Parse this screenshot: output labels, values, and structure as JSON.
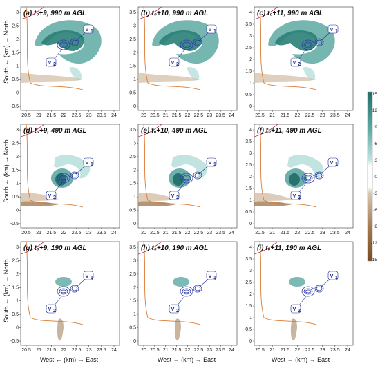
{
  "figure": {
    "y_axis_label": "South ← (km) → North",
    "x_axis_label": "West ← (km) → East",
    "colorbar": {
      "ticks": [
        "15",
        "12",
        "9",
        "6",
        "3",
        "0",
        "-3",
        "-6",
        "-9",
        "-12",
        "-15"
      ],
      "positive_color": "#1f7a72",
      "negative_color": "#8a5a2b"
    },
    "vortex_labels": {
      "v1": "V",
      "v2": "V",
      "sub1": "1",
      "sub2": "2"
    },
    "rows": [
      {
        "height": "990 m AGL",
        "panels": [
          {
            "letter": "(a)",
            "time": "t₀+9,",
            "height": "990 m AGL",
            "xticks": [
              "20.5",
              "21",
              "21.5",
              "22",
              "22.5",
              "23",
              "23.5",
              "24"
            ],
            "yticks": [
              "-0.5",
              "0",
              "0.5",
              "1",
              "1.5",
              "2",
              "2.5",
              "3"
            ]
          },
          {
            "letter": "(b)",
            "time": "t₀+10,",
            "height": "990 m AGL",
            "xticks": [
              "20",
              "20.5",
              "21",
              "21.5",
              "22",
              "22.5",
              "23",
              "23.5",
              "24"
            ],
            "yticks": [
              "0",
              "0.5",
              "1",
              "1.5",
              "2",
              "2.5",
              "3",
              "3.5"
            ]
          },
          {
            "letter": "(c)",
            "time": "t₀+11,",
            "height": "990 m AGL",
            "xticks": [
              "20.5",
              "21",
              "21.5",
              "22",
              "22.5",
              "23",
              "23.5",
              "24"
            ],
            "yticks": [
              "0",
              "0.5",
              "1",
              "1.5",
              "2",
              "2.5",
              "3",
              "3.5",
              "4"
            ]
          }
        ]
      },
      {
        "height": "490 m AGL",
        "panels": [
          {
            "letter": "(d)",
            "time": "t₀+9,",
            "height": "490 m AGL",
            "xticks": [
              "20.5",
              "21",
              "21.5",
              "22",
              "22.5",
              "23",
              "23.5",
              "24"
            ],
            "yticks": [
              "-0.5",
              "0",
              "0.5",
              "1",
              "1.5",
              "2",
              "2.5",
              "3"
            ]
          },
          {
            "letter": "(e)",
            "time": "t₀+10,",
            "height": "490 m AGL",
            "xticks": [
              "20",
              "20.5",
              "21",
              "21.5",
              "22",
              "22.5",
              "23",
              "23.5",
              "24"
            ],
            "yticks": [
              "0",
              "0.5",
              "1",
              "1.5",
              "2",
              "2.5",
              "3",
              "3.5"
            ]
          },
          {
            "letter": "(f)",
            "time": "t₀+11,",
            "height": "490 m AGL",
            "xticks": [
              "20.5",
              "21",
              "21.5",
              "22",
              "22.5",
              "23",
              "23.5",
              "24"
            ],
            "yticks": [
              "0",
              "0.5",
              "1",
              "1.5",
              "2",
              "2.5",
              "3",
              "3.5",
              "4"
            ]
          }
        ]
      },
      {
        "height": "190 m AGL",
        "panels": [
          {
            "letter": "(g)",
            "time": "t₀+9,",
            "height": "190 m AGL",
            "xticks": [
              "20.5",
              "21",
              "21.5",
              "22",
              "22.5",
              "23",
              "23.5",
              "24"
            ],
            "yticks": [
              "-0.5",
              "0",
              "0.5",
              "1",
              "1.5",
              "2",
              "2.5",
              "3"
            ]
          },
          {
            "letter": "(h)",
            "time": "t₀+10,",
            "height": "190 m AGL",
            "xticks": [
              "20",
              "20.5",
              "21",
              "21.5",
              "22",
              "22.5",
              "23",
              "23.5",
              "24"
            ],
            "yticks": [
              "0",
              "0.5",
              "1",
              "1.5",
              "2",
              "2.5",
              "3",
              "3.5"
            ]
          },
          {
            "letter": "(i)",
            "time": "t₀+11,",
            "height": "190 m AGL",
            "xticks": [
              "20.5",
              "21",
              "21.5",
              "22",
              "22.5",
              "23",
              "23.5",
              "24"
            ],
            "yticks": [
              "0",
              "0.5",
              "1",
              "1.5",
              "2",
              "2.5",
              "3",
              "3.5",
              "4"
            ]
          }
        ]
      }
    ]
  }
}
